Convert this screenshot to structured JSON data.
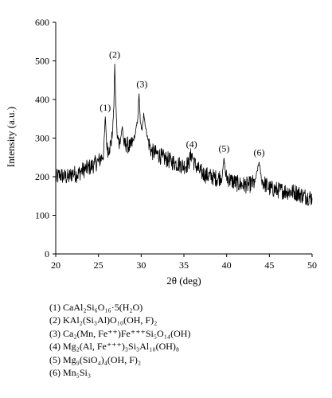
{
  "chart_data": {
    "type": "line",
    "title": "",
    "xlabel": "2θ (deg)",
    "ylabel": "Intensity (a.u.)",
    "xlim": [
      20,
      50
    ],
    "ylim": [
      0,
      600
    ],
    "x_ticks": [
      20,
      25,
      30,
      35,
      40,
      45,
      50
    ],
    "y_ticks": [
      0,
      100,
      200,
      300,
      400,
      500,
      600
    ],
    "line_color": "#000000",
    "grid": false,
    "series": [
      {
        "values": [
          [
            20.0,
            195
          ],
          [
            20.5,
            205
          ],
          [
            21.0,
            200
          ],
          [
            21.5,
            198
          ],
          [
            22.0,
            210
          ],
          [
            22.5,
            205
          ],
          [
            23.0,
            215
          ],
          [
            23.5,
            220
          ],
          [
            24.0,
            225
          ],
          [
            24.5,
            232
          ],
          [
            25.0,
            240
          ],
          [
            25.4,
            250
          ],
          [
            25.6,
            262
          ],
          [
            25.8,
            355
          ],
          [
            26.0,
            270
          ],
          [
            26.3,
            275
          ],
          [
            26.6,
            300
          ],
          [
            26.8,
            380
          ],
          [
            26.9,
            492
          ],
          [
            27.0,
            410
          ],
          [
            27.2,
            300
          ],
          [
            27.5,
            285
          ],
          [
            27.8,
            330
          ],
          [
            28.0,
            280
          ],
          [
            28.3,
            285
          ],
          [
            28.7,
            275
          ],
          [
            29.0,
            290
          ],
          [
            29.3,
            310
          ],
          [
            29.6,
            350
          ],
          [
            29.75,
            415
          ],
          [
            29.9,
            340
          ],
          [
            30.1,
            320
          ],
          [
            30.3,
            365
          ],
          [
            30.5,
            330
          ],
          [
            30.8,
            295
          ],
          [
            31.2,
            265
          ],
          [
            31.8,
            260
          ],
          [
            32.5,
            250
          ],
          [
            33.0,
            245
          ],
          [
            33.5,
            240
          ],
          [
            34.0,
            235
          ],
          [
            34.5,
            232
          ],
          [
            35.0,
            228
          ],
          [
            35.5,
            232
          ],
          [
            35.9,
            260
          ],
          [
            36.2,
            235
          ],
          [
            36.8,
            215
          ],
          [
            37.5,
            205
          ],
          [
            38.2,
            200
          ],
          [
            39.0,
            195
          ],
          [
            39.5,
            205
          ],
          [
            39.7,
            248
          ],
          [
            39.9,
            200
          ],
          [
            40.5,
            190
          ],
          [
            41.5,
            180
          ],
          [
            42.5,
            178
          ],
          [
            43.3,
            185
          ],
          [
            43.8,
            238
          ],
          [
            44.1,
            190
          ],
          [
            45.0,
            170
          ],
          [
            46.0,
            165
          ],
          [
            47.0,
            162
          ],
          [
            48.0,
            160
          ],
          [
            49.0,
            150
          ],
          [
            50.0,
            145
          ]
        ]
      }
    ],
    "annotations": [
      {
        "text": "(1)",
        "x": 25.8,
        "y": 355
      },
      {
        "text": "(2)",
        "x": 26.9,
        "y": 492
      },
      {
        "text": "(3)",
        "x": 30.1,
        "y": 415
      },
      {
        "text": "(4)",
        "x": 35.9,
        "y": 260
      },
      {
        "text": "(5)",
        "x": 39.7,
        "y": 248
      },
      {
        "text": "(6)",
        "x": 43.8,
        "y": 238
      }
    ]
  },
  "legend": [
    {
      "num": "(1)",
      "formula": "CaAl₂Si₆O₁₆·5(H₂O)"
    },
    {
      "num": "(2)",
      "formula": "KAl₂(Si₃Al)O₁₀(OH, F)₂"
    },
    {
      "num": "(3)",
      "formula": "Ca₂(Mn, Fe⁺⁺)Fe⁺⁺⁺Si₅O₁₄(OH)"
    },
    {
      "num": "(4)",
      "formula": "Mg₂(Al, Fe⁺⁺⁺)₃Si₃Al₁₀(OH)₈"
    },
    {
      "num": "(5)",
      "formula": "Mg₉(SiO₄)₄(OH, F)₂"
    },
    {
      "num": "(6)",
      "formula": "Mn₅Si₃"
    }
  ]
}
